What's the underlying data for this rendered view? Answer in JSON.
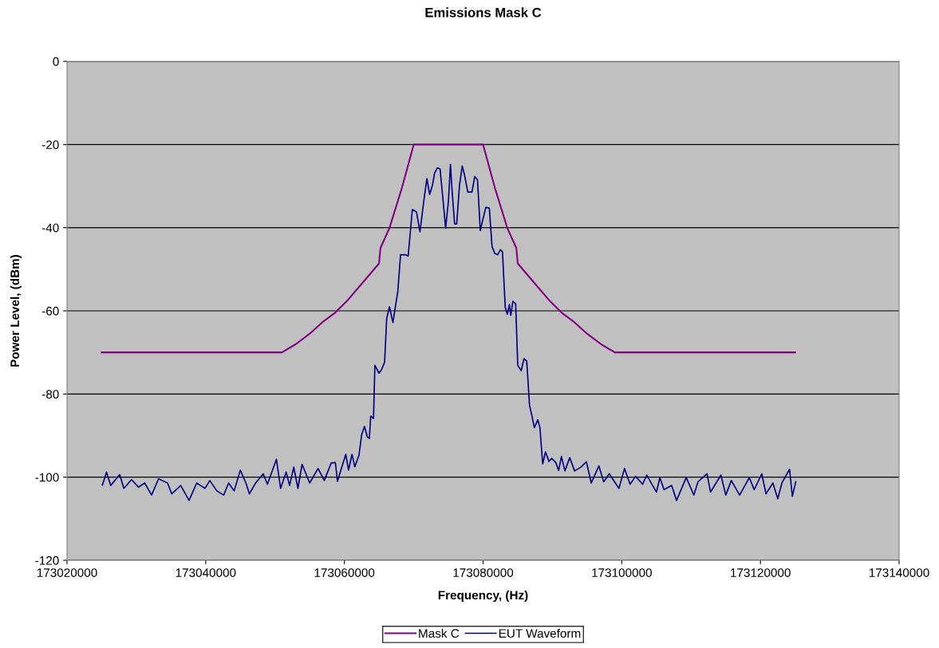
{
  "chart_data": {
    "type": "line",
    "title": "Emissions Mask C",
    "xlabel": "Frequency, (Hz)",
    "ylabel": "Power Level, (dBm)",
    "xlim": [
      173020000,
      173140000
    ],
    "xticks": [
      173020000,
      173040000,
      173060000,
      173080000,
      173100000,
      173120000,
      173140000
    ],
    "ylim": [
      -120,
      0
    ],
    "yticks": [
      -120,
      -100,
      -80,
      -60,
      -40,
      -20,
      0
    ],
    "grid": "y",
    "legend": "bottom",
    "marker": "none",
    "line_style": "solid",
    "series": [
      {
        "name": "Mask C",
        "color": "#800080",
        "x": [
          173025000,
          173051000,
          173053000,
          173055000,
          173057000,
          173058700,
          173060500,
          173062800,
          173065000,
          173065200,
          173066500,
          173068300,
          173070000,
          173080000,
          173081700,
          173083500,
          173084800,
          173085000,
          173087200,
          173089500,
          173091300,
          173093000,
          173095000,
          173097000,
          173099000,
          173125000
        ],
        "values": [
          -70,
          -70,
          -68,
          -65.5,
          -62.5,
          -60.4,
          -57.4,
          -52.9,
          -48.6,
          -44.9,
          -40.1,
          -30.4,
          -20,
          -20,
          -30.4,
          -40.1,
          -44.9,
          -48.6,
          -52.9,
          -57.4,
          -60.4,
          -62.5,
          -65.5,
          -68,
          -70,
          -70
        ]
      },
      {
        "name": "EUT Waveform",
        "color": "#000080",
        "x": [
          173025100,
          173025700,
          173026300,
          173027600,
          173028200,
          173029300,
          173030300,
          173031200,
          173032200,
          173033200,
          173034500,
          173035100,
          173036400,
          173037600,
          173038700,
          173039900,
          173040600,
          173041600,
          173042600,
          173043300,
          173044100,
          173045000,
          173045800,
          173046300,
          173047200,
          173048300,
          173048900,
          173050200,
          173050800,
          173051600,
          173052100,
          173052700,
          173053300,
          173053900,
          173055000,
          173056200,
          173057100,
          173058100,
          173058700,
          173059000,
          173060200,
          173060600,
          173061100,
          173061500,
          173062100,
          173062500,
          173062900,
          173063300,
          173063600,
          173063800,
          173064200,
          173064400,
          173065000,
          173065400,
          173065800,
          173066100,
          173066500,
          173067000,
          173067700,
          173068100,
          173068800,
          173069200,
          173069800,
          173070400,
          173070900,
          173071500,
          173071900,
          173072300,
          173072700,
          173073000,
          173073400,
          173073800,
          173074100,
          173074600,
          173075000,
          173075300,
          173075500,
          173075900,
          173076200,
          173076600,
          173077000,
          173077300,
          173077800,
          173078400,
          173078800,
          173079200,
          173079600,
          173079900,
          173080400,
          173080900,
          173081300,
          173081700,
          173082100,
          173082500,
          173082800,
          173083200,
          173083500,
          173083800,
          173084000,
          173084300,
          173084700,
          173085000,
          173085500,
          173085900,
          173086300,
          173086700,
          173087000,
          173087400,
          173087900,
          173088200,
          173088600,
          173089000,
          173089500,
          173089900,
          173090500,
          173090900,
          173091300,
          173091800,
          173092500,
          173093200,
          173094100,
          173094900,
          173095600,
          173096700,
          173097400,
          173098200,
          173099600,
          173100400,
          173101200,
          173102000,
          173103000,
          173103600,
          173105000,
          173105500,
          173106100,
          173107200,
          173107900,
          173109300,
          173110400,
          173111000,
          173112300,
          173112800,
          173114300,
          173115000,
          173115800,
          173117000,
          173118400,
          173119100,
          173120200,
          173120800,
          173121800,
          173122500,
          173123100,
          173124200,
          173124600,
          173125100
        ],
        "values": [
          -101.9,
          -98.8,
          -102,
          -99.4,
          -102.7,
          -100.6,
          -102.4,
          -101.4,
          -104.3,
          -100.4,
          -101.4,
          -104,
          -102,
          -105.6,
          -101.4,
          -102.7,
          -100.8,
          -103.3,
          -104.3,
          -101.4,
          -103.3,
          -98.3,
          -101.4,
          -104,
          -101.4,
          -99.2,
          -101.7,
          -95.7,
          -102.7,
          -98.8,
          -102,
          -97.6,
          -102.7,
          -96.9,
          -101.4,
          -97.9,
          -100.8,
          -96.6,
          -96.5,
          -101,
          -94.5,
          -98.3,
          -94.5,
          -97.5,
          -94.8,
          -89.7,
          -87.8,
          -90.3,
          -90.7,
          -85.3,
          -85.9,
          -73.1,
          -75,
          -74,
          -72.4,
          -61.9,
          -59,
          -62.8,
          -55.4,
          -46.5,
          -46.5,
          -46.8,
          -35.6,
          -36.2,
          -41,
          -33,
          -28.2,
          -32,
          -29.8,
          -26.9,
          -25.6,
          -25.9,
          -31.1,
          -40.1,
          -33.7,
          -24.8,
          -30.4,
          -39.1,
          -39.1,
          -29.8,
          -25.2,
          -27.1,
          -31.4,
          -31.4,
          -27.7,
          -28.5,
          -40.7,
          -38.5,
          -35.1,
          -35.3,
          -44.6,
          -46.2,
          -46.5,
          -45.3,
          -45.8,
          -59.2,
          -60.8,
          -58.5,
          -61.1,
          -57.7,
          -58.3,
          -73.1,
          -74.4,
          -71.5,
          -72.1,
          -82.7,
          -84.9,
          -88.1,
          -86.2,
          -88.1,
          -96.8,
          -93.9,
          -96.2,
          -95.5,
          -96.5,
          -98.4,
          -95,
          -98.5,
          -95.3,
          -98.5,
          -97.6,
          -96.3,
          -101.4,
          -97.3,
          -101.1,
          -99.2,
          -102.7,
          -97.9,
          -101.7,
          -99.8,
          -101.7,
          -99.5,
          -103.6,
          -100.1,
          -103,
          -102,
          -105.6,
          -100.1,
          -104.3,
          -101.1,
          -99.2,
          -103.6,
          -99.5,
          -104.3,
          -100.8,
          -104.3,
          -100.1,
          -103,
          -99.2,
          -104,
          -101.4,
          -105.2,
          -101.4,
          -98.1,
          -104.6,
          -101.1
        ]
      }
    ]
  }
}
